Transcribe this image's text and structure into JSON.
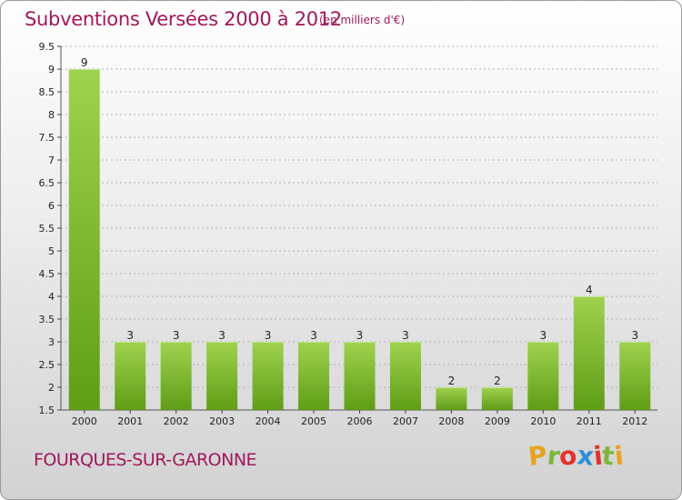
{
  "header": {
    "title": "Subventions Versées 2000 à 2012",
    "subtitle": "(en milliers d'€)"
  },
  "footer": {
    "commune": "FOURQUES-SUR-GARONNE",
    "logo_letters": [
      "P",
      "r",
      "o",
      "x",
      "i",
      "t",
      "i"
    ],
    "logo_colors": [
      "#e8a21e",
      "#7bb63a",
      "#e2332d",
      "#2b8fd6",
      "#e2332d",
      "#7bb63a",
      "#e8a21e"
    ]
  },
  "colors": {
    "title": "#a0185a",
    "bar_light": "#9fd24f",
    "bar_dark": "#5f9d16",
    "grid": "#b0b0b0"
  },
  "chart_data": {
    "type": "bar",
    "categories": [
      "2000",
      "2001",
      "2002",
      "2003",
      "2004",
      "2005",
      "2006",
      "2007",
      "2008",
      "2009",
      "2010",
      "2011",
      "2012"
    ],
    "values": [
      9,
      3,
      3,
      3,
      3,
      3,
      3,
      3,
      2,
      2,
      3,
      4,
      3
    ],
    "value_labels": [
      "9",
      "3",
      "3",
      "3",
      "3",
      "3",
      "3",
      "3",
      "2",
      "2",
      "3",
      "4",
      "3"
    ],
    "ylim": [
      1.5,
      9.5
    ],
    "yticks": [
      "1.5",
      "2",
      "2.5",
      "3",
      "3.5",
      "4",
      "4.5",
      "5",
      "5.5",
      "6",
      "6.5",
      "7",
      "7.5",
      "8",
      "8.5",
      "9",
      "9.5"
    ],
    "grid": true,
    "grid_style": "dashed horizontal"
  }
}
